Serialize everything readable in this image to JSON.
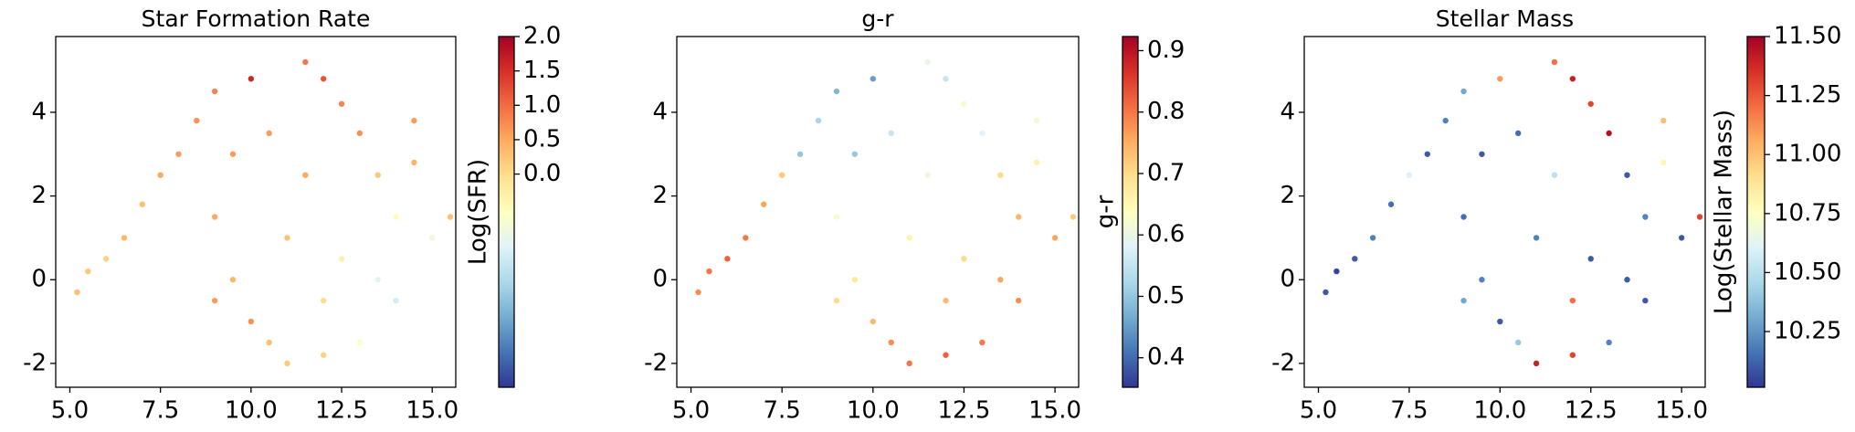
{
  "chart_data": [
    {
      "type": "scatter",
      "title": "Star Formation Rate",
      "xlim": [
        4.61,
        15.65
      ],
      "ylim": [
        -2.57,
        5.81
      ],
      "xticks": [
        {
          "value": 5,
          "label": "5.0"
        },
        7.5,
        {
          "value": 10,
          "label": "10.0"
        },
        12.5,
        {
          "value": 15,
          "label": "15.0"
        }
      ],
      "yticks": [
        -2,
        0,
        2,
        4
      ],
      "x": [
        5.2,
        5.5,
        6.0,
        6.5,
        7.0,
        7.5,
        8.0,
        8.5,
        9.0,
        9.5,
        9.0,
        9.5,
        10.0,
        10.5,
        11.0,
        11.5,
        12.0,
        12.5,
        13.0,
        13.5,
        14.0,
        14.5,
        15.0,
        15.5,
        14.0,
        13.0,
        12.0,
        12.5,
        11.0,
        10.5,
        11.5,
        13.5,
        10.0,
        12.0,
        14.5,
        9.0
      ],
      "y": [
        -0.3,
        0.2,
        0.5,
        1.0,
        1.8,
        2.5,
        3.0,
        3.8,
        4.5,
        3.0,
        1.5,
        0.0,
        -1.0,
        -1.5,
        -2.0,
        5.2,
        4.8,
        4.2,
        3.5,
        2.5,
        1.5,
        2.8,
        1.0,
        1.5,
        -0.5,
        -1.5,
        -1.8,
        0.5,
        1.0,
        3.5,
        2.5,
        0.0,
        4.8,
        -0.5,
        3.8,
        -0.5
      ],
      "c": [
        0.3,
        0.2,
        0.1,
        0.4,
        0.3,
        0.5,
        0.6,
        0.7,
        0.8,
        0.6,
        0.5,
        0.4,
        0.7,
        0.3,
        0.2,
        0.9,
        1.2,
        0.8,
        0.7,
        0.2,
        -0.5,
        0.4,
        -0.8,
        0.3,
        -1.2,
        -0.6,
        0.1,
        -0.3,
        0.3,
        0.6,
        0.5,
        -1.0,
        1.6,
        0.0,
        0.6,
        0.6
      ],
      "colorbar": {
        "label": "Log(SFR)",
        "lim": [
          -3.1,
          2.0
        ],
        "ticks": [
          {
            "value": 0,
            "label": "0.0"
          },
          0.5,
          {
            "value": 1,
            "label": "1.0"
          },
          1.5,
          {
            "value": 2,
            "label": "2.0"
          }
        ],
        "cmap": [
          "#313695",
          "#4575b4",
          "#74add1",
          "#abd9e9",
          "#e0f3f8",
          "#ffffbf",
          "#fee090",
          "#fdae61",
          "#f46d43",
          "#d73027",
          "#a50026"
        ]
      }
    },
    {
      "type": "scatter",
      "title": "g-r",
      "xlim": [
        4.61,
        15.65
      ],
      "ylim": [
        -2.57,
        5.81
      ],
      "xticks": [
        {
          "value": 5,
          "label": "5.0"
        },
        7.5,
        {
          "value": 10,
          "label": "10.0"
        },
        12.5,
        {
          "value": 15,
          "label": "15.0"
        }
      ],
      "yticks": [
        -2,
        0,
        2,
        4
      ],
      "x": [
        5.2,
        5.5,
        6.0,
        6.5,
        7.0,
        7.5,
        8.0,
        8.5,
        9.0,
        9.5,
        9.0,
        9.5,
        10.0,
        10.5,
        11.0,
        11.5,
        12.0,
        12.5,
        13.0,
        13.5,
        14.0,
        14.5,
        15.0,
        15.5,
        14.0,
        13.0,
        12.0,
        12.5,
        11.0,
        10.5,
        11.5,
        13.5,
        10.0,
        12.0,
        14.5,
        9.0
      ],
      "y": [
        -0.3,
        0.2,
        0.5,
        1.0,
        1.8,
        2.5,
        3.0,
        3.8,
        4.5,
        3.0,
        1.5,
        0.0,
        -1.0,
        -1.5,
        -2.0,
        5.2,
        4.8,
        4.2,
        3.5,
        2.5,
        1.5,
        2.8,
        1.0,
        1.5,
        -0.5,
        -1.5,
        -1.8,
        0.5,
        1.0,
        3.5,
        2.5,
        0.0,
        4.8,
        -0.5,
        3.8,
        -0.5
      ],
      "c": [
        0.78,
        0.8,
        0.82,
        0.8,
        0.76,
        0.72,
        0.5,
        0.52,
        0.48,
        0.5,
        0.62,
        0.68,
        0.74,
        0.78,
        0.8,
        0.6,
        0.55,
        0.62,
        0.58,
        0.7,
        0.74,
        0.66,
        0.76,
        0.72,
        0.78,
        0.8,
        0.82,
        0.7,
        0.66,
        0.55,
        0.6,
        0.76,
        0.45,
        0.74,
        0.62,
        0.7
      ],
      "colorbar": {
        "label": "g-r",
        "lim": [
          0.352,
          0.923
        ],
        "ticks": [
          0.4,
          0.5,
          0.6,
          0.7,
          0.8,
          0.9
        ],
        "cmap": [
          "#313695",
          "#4575b4",
          "#74add1",
          "#abd9e9",
          "#e0f3f8",
          "#ffffbf",
          "#fee090",
          "#fdae61",
          "#f46d43",
          "#d73027",
          "#a50026"
        ]
      }
    },
    {
      "type": "scatter",
      "title": "Stellar Mass",
      "xlim": [
        4.61,
        15.65
      ],
      "ylim": [
        -2.57,
        5.81
      ],
      "xticks": [
        {
          "value": 5,
          "label": "5.0"
        },
        7.5,
        {
          "value": 10,
          "label": "10.0"
        },
        12.5,
        {
          "value": 15,
          "label": "15.0"
        }
      ],
      "yticks": [
        -2,
        0,
        2,
        4
      ],
      "x": [
        5.2,
        5.5,
        6.0,
        6.5,
        7.0,
        7.5,
        8.0,
        8.5,
        9.0,
        9.5,
        9.0,
        9.5,
        10.0,
        10.5,
        11.0,
        11.5,
        12.0,
        12.5,
        13.0,
        13.5,
        14.0,
        14.5,
        15.0,
        15.5,
        14.0,
        13.0,
        12.0,
        12.5,
        11.0,
        10.5,
        11.5,
        13.5,
        10.0,
        12.0,
        14.5,
        9.0
      ],
      "y": [
        -0.3,
        0.2,
        0.5,
        1.0,
        1.8,
        2.5,
        3.0,
        3.8,
        4.5,
        3.0,
        1.5,
        0.0,
        -1.0,
        -1.5,
        -2.0,
        5.2,
        4.8,
        4.2,
        3.5,
        2.5,
        1.5,
        2.8,
        1.0,
        1.5,
        -0.5,
        -1.5,
        -1.8,
        0.5,
        1.0,
        3.5,
        2.5,
        0.0,
        4.8,
        -0.5,
        3.8,
        -0.5
      ],
      "c": [
        10.1,
        10.05,
        10.1,
        10.2,
        10.15,
        10.6,
        10.1,
        10.2,
        10.3,
        10.1,
        10.15,
        10.2,
        10.1,
        10.4,
        11.4,
        11.2,
        11.4,
        11.3,
        11.45,
        10.1,
        10.2,
        10.8,
        10.1,
        11.3,
        10.1,
        10.2,
        11.3,
        10.1,
        10.2,
        10.15,
        10.5,
        10.1,
        11.1,
        11.2,
        11.0,
        10.3
      ],
      "colorbar": {
        "label": "Log(Stellar Mass)",
        "lim": [
          10.014,
          11.5
        ],
        "ticks": [
          10.25,
          {
            "value": 10.5,
            "label": "10.50"
          },
          10.75,
          {
            "value": 11,
            "label": "11.00"
          },
          11.25,
          {
            "value": 11.5,
            "label": "11.50"
          }
        ],
        "cmap": [
          "#313695",
          "#4575b4",
          "#74add1",
          "#abd9e9",
          "#e0f3f8",
          "#ffffbf",
          "#fee090",
          "#fdae61",
          "#f46d43",
          "#d73027",
          "#a50026"
        ]
      }
    }
  ]
}
